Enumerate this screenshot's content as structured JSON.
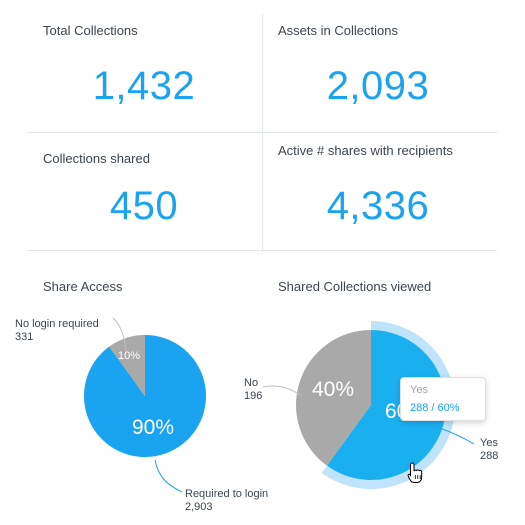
{
  "stats": [
    {
      "label": "Total Collections",
      "value": "1,432"
    },
    {
      "label": "Assets in Collections",
      "value": "2,093"
    },
    {
      "label": "Collections shared",
      "value": "450"
    },
    {
      "label": "Active # shares with recipients",
      "value": "4,336"
    }
  ],
  "share_access": {
    "title": "Share Access",
    "slices": [
      {
        "name_line1": "Required to login",
        "count": "2,903",
        "percent_label": "90%",
        "fraction": 0.9,
        "color": "#1aa3f0"
      },
      {
        "name_line1": "No login required",
        "count": "331",
        "percent_label": "10%",
        "fraction": 0.1,
        "color": "#a9a9a9"
      }
    ]
  },
  "viewed": {
    "title": "Shared Collections viewed",
    "slices": [
      {
        "name": "Yes",
        "count": "288",
        "percent_label": "60%",
        "fraction": 0.6,
        "color": "#1ab0f0",
        "hover_ring_color": "#bfe3fa"
      },
      {
        "name": "No",
        "count": "196",
        "percent_label": "40%",
        "fraction": 0.4,
        "color": "#a9a9a9"
      }
    ],
    "tooltip": {
      "title": "Yes",
      "value": "288 / 60%"
    }
  },
  "chart_data": [
    {
      "type": "pie",
      "title": "Share Access",
      "categories": [
        "Required to login",
        "No login required"
      ],
      "values": [
        2903,
        331
      ],
      "percents": [
        90,
        10
      ]
    },
    {
      "type": "pie",
      "title": "Shared Collections viewed",
      "categories": [
        "Yes",
        "No"
      ],
      "values": [
        288,
        196
      ],
      "percents": [
        60,
        40
      ]
    }
  ]
}
